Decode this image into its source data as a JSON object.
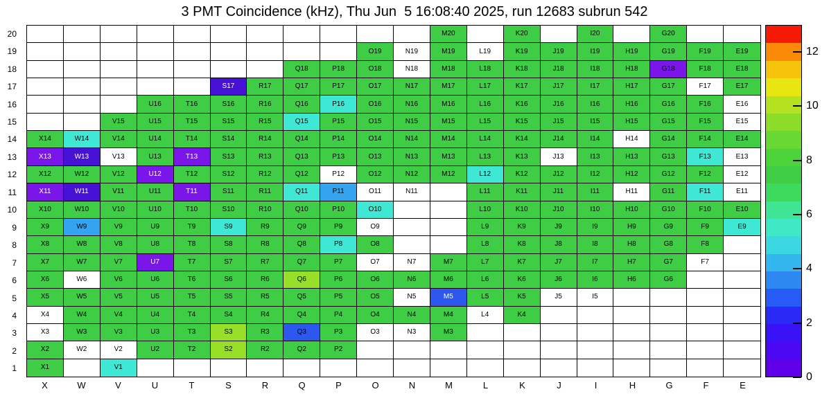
{
  "title": "3 PMT Coincidence (kHz), Thu Jun  5 16:08:40 2025, run 12683 subrun 542",
  "chart_data": {
    "type": "heatmap",
    "title": "3 PMT Coincidence (kHz), Thu Jun  5 16:08:40 2025, run 12683 subrun 542",
    "x_categories": [
      "X",
      "W",
      "V",
      "U",
      "T",
      "S",
      "R",
      "Q",
      "P",
      "O",
      "N",
      "M",
      "L",
      "K",
      "J",
      "I",
      "H",
      "G",
      "F",
      "E"
    ],
    "y_categories": [
      20,
      19,
      18,
      17,
      16,
      15,
      14,
      13,
      12,
      11,
      10,
      9,
      8,
      7,
      6,
      5,
      4,
      3,
      2,
      1
    ],
    "grid": true,
    "legend_position": "right",
    "palette": {
      "g": "#3ecd44",
      "yg": "#97df28",
      "c": "#3fe8d4",
      "sb": "#34a4f0",
      "b": "#2c58ee",
      "v": "#7a16ea",
      "dv": "#4712d6",
      "w": "#ffffff"
    },
    "color_value_estimate_khz": {
      "g": 7,
      "yg": 9.5,
      "c": 4.7,
      "sb": 3.3,
      "b": 2.3,
      "v": 0.9,
      "dv": 0.5,
      "w": 0
    },
    "cells": [
      [
        null,
        null,
        null,
        null,
        null,
        null,
        null,
        null,
        null,
        null,
        null,
        [
          "M20",
          "g"
        ],
        null,
        [
          "K20",
          "g"
        ],
        null,
        [
          "I20",
          "g"
        ],
        null,
        [
          "G20",
          "g"
        ],
        null,
        null
      ],
      [
        null,
        null,
        null,
        null,
        null,
        null,
        null,
        null,
        null,
        [
          "O19",
          "g"
        ],
        [
          "N19",
          "w"
        ],
        [
          "M19",
          "g"
        ],
        [
          "L19",
          "w"
        ],
        [
          "K19",
          "g"
        ],
        [
          "J19",
          "g"
        ],
        [
          "I19",
          "g"
        ],
        [
          "H19",
          "g"
        ],
        [
          "G19",
          "g"
        ],
        [
          "F19",
          "g"
        ],
        [
          "E19",
          "g"
        ]
      ],
      [
        null,
        null,
        null,
        null,
        null,
        null,
        null,
        [
          "Q18",
          "g"
        ],
        [
          "P18",
          "g"
        ],
        [
          "O18",
          "g"
        ],
        [
          "N18",
          "w"
        ],
        [
          "M18",
          "g"
        ],
        [
          "L18",
          "g"
        ],
        [
          "K18",
          "g"
        ],
        [
          "J18",
          "g"
        ],
        [
          "I18",
          "g"
        ],
        [
          "H18",
          "g"
        ],
        [
          "G18",
          "v"
        ],
        [
          "F18",
          "g"
        ],
        [
          "E18",
          "g"
        ]
      ],
      [
        null,
        null,
        null,
        null,
        null,
        [
          "S17",
          "dv",
          "w"
        ],
        [
          "R17",
          "g"
        ],
        [
          "Q17",
          "g"
        ],
        [
          "P17",
          "g"
        ],
        [
          "O17",
          "g"
        ],
        [
          "N17",
          "g"
        ],
        [
          "M17",
          "g"
        ],
        [
          "L17",
          "g"
        ],
        [
          "K17",
          "g"
        ],
        [
          "J17",
          "g"
        ],
        [
          "I17",
          "g"
        ],
        [
          "H17",
          "g"
        ],
        [
          "G17",
          "g"
        ],
        [
          "F17",
          "w"
        ],
        [
          "E17",
          "g"
        ]
      ],
      [
        null,
        null,
        null,
        [
          "U16",
          "g"
        ],
        [
          "T16",
          "g"
        ],
        [
          "S16",
          "g"
        ],
        [
          "R16",
          "g"
        ],
        [
          "Q16",
          "g"
        ],
        [
          "P16",
          "c"
        ],
        [
          "O16",
          "g"
        ],
        [
          "N16",
          "g"
        ],
        [
          "M16",
          "g"
        ],
        [
          "L16",
          "g"
        ],
        [
          "K16",
          "g"
        ],
        [
          "J16",
          "g"
        ],
        [
          "I16",
          "g"
        ],
        [
          "H16",
          "g"
        ],
        [
          "G16",
          "g"
        ],
        [
          "F16",
          "g"
        ],
        [
          "E16",
          "w"
        ]
      ],
      [
        null,
        null,
        [
          "V15",
          "g"
        ],
        [
          "U15",
          "g"
        ],
        [
          "T15",
          "g"
        ],
        [
          "S15",
          "g"
        ],
        [
          "R15",
          "g"
        ],
        [
          "Q15",
          "c"
        ],
        [
          "P15",
          "g"
        ],
        [
          "O15",
          "g"
        ],
        [
          "N15",
          "g"
        ],
        [
          "M15",
          "g"
        ],
        [
          "L15",
          "g"
        ],
        [
          "K15",
          "g"
        ],
        [
          "J15",
          "g"
        ],
        [
          "I15",
          "g"
        ],
        [
          "H15",
          "g"
        ],
        [
          "G15",
          "g"
        ],
        [
          "F15",
          "g"
        ],
        [
          "E15",
          "w"
        ]
      ],
      [
        [
          "X14",
          "g"
        ],
        [
          "W14",
          "c"
        ],
        [
          "V14",
          "g"
        ],
        [
          "U14",
          "g"
        ],
        [
          "T14",
          "g"
        ],
        [
          "S14",
          "g"
        ],
        [
          "R14",
          "g"
        ],
        [
          "Q14",
          "g"
        ],
        [
          "P14",
          "g"
        ],
        [
          "O14",
          "g"
        ],
        [
          "N14",
          "g"
        ],
        [
          "M14",
          "g"
        ],
        [
          "L14",
          "g"
        ],
        [
          "K14",
          "g"
        ],
        [
          "J14",
          "g"
        ],
        [
          "I14",
          "g"
        ],
        [
          "H14",
          "w"
        ],
        [
          "G14",
          "g"
        ],
        [
          "F14",
          "g"
        ],
        [
          "E14",
          "g"
        ]
      ],
      [
        [
          "X13",
          "v",
          "w"
        ],
        [
          "W13",
          "dv",
          "w"
        ],
        [
          "V13",
          "w"
        ],
        [
          "U13",
          "g"
        ],
        [
          "T13",
          "v",
          "w"
        ],
        [
          "S13",
          "g"
        ],
        [
          "R13",
          "g"
        ],
        [
          "Q13",
          "g"
        ],
        [
          "P13",
          "g"
        ],
        [
          "O13",
          "g"
        ],
        [
          "N13",
          "g"
        ],
        [
          "M13",
          "g"
        ],
        [
          "L13",
          "g"
        ],
        [
          "K13",
          "g"
        ],
        [
          "J13",
          "w"
        ],
        [
          "I13",
          "g"
        ],
        [
          "H13",
          "g"
        ],
        [
          "G13",
          "g"
        ],
        [
          "F13",
          "c"
        ],
        [
          "E13",
          "w"
        ]
      ],
      [
        [
          "X12",
          "g"
        ],
        [
          "W12",
          "g"
        ],
        [
          "V12",
          "g"
        ],
        [
          "U12",
          "v",
          "w"
        ],
        [
          "T12",
          "g"
        ],
        [
          "S12",
          "g"
        ],
        [
          "R12",
          "g"
        ],
        [
          "Q12",
          "g"
        ],
        [
          "P12",
          "w"
        ],
        [
          "O12",
          "g"
        ],
        [
          "N12",
          "g"
        ],
        [
          "M12",
          "g"
        ],
        [
          "L12",
          "c"
        ],
        [
          "K12",
          "g"
        ],
        [
          "J12",
          "g"
        ],
        [
          "I12",
          "g"
        ],
        [
          "H12",
          "g"
        ],
        [
          "G12",
          "g"
        ],
        [
          "F12",
          "g"
        ],
        [
          "E12",
          "w"
        ]
      ],
      [
        [
          "X11",
          "v",
          "w"
        ],
        [
          "W11",
          "dv",
          "w"
        ],
        [
          "V11",
          "g"
        ],
        [
          "U11",
          "g"
        ],
        [
          "T11",
          "v",
          "w"
        ],
        [
          "S11",
          "g"
        ],
        [
          "R11",
          "g"
        ],
        [
          "Q11",
          "c"
        ],
        [
          "P11",
          "sb"
        ],
        [
          "O11",
          "w"
        ],
        [
          "N11",
          "w"
        ],
        null,
        [
          "L11",
          "g"
        ],
        [
          "K11",
          "g"
        ],
        [
          "J11",
          "g"
        ],
        [
          "I11",
          "g"
        ],
        [
          "H11",
          "w"
        ],
        [
          "G11",
          "g"
        ],
        [
          "F11",
          "c"
        ],
        [
          "E11",
          "w"
        ]
      ],
      [
        [
          "X10",
          "g"
        ],
        [
          "W10",
          "g"
        ],
        [
          "V10",
          "g"
        ],
        [
          "U10",
          "g"
        ],
        [
          "T10",
          "g"
        ],
        [
          "S10",
          "g"
        ],
        [
          "R10",
          "g"
        ],
        [
          "Q10",
          "g"
        ],
        [
          "P10",
          "g"
        ],
        [
          "O10",
          "c"
        ],
        null,
        null,
        [
          "L10",
          "g"
        ],
        [
          "K10",
          "g"
        ],
        [
          "J10",
          "g"
        ],
        [
          "I10",
          "g"
        ],
        [
          "H10",
          "g"
        ],
        [
          "G10",
          "g"
        ],
        [
          "F10",
          "g"
        ],
        [
          "E10",
          "g"
        ]
      ],
      [
        [
          "X9",
          "g"
        ],
        [
          "W9",
          "sb"
        ],
        [
          "V9",
          "g"
        ],
        [
          "U9",
          "g"
        ],
        [
          "T9",
          "g"
        ],
        [
          "S9",
          "c"
        ],
        [
          "R9",
          "g"
        ],
        [
          "Q9",
          "g"
        ],
        [
          "P9",
          "g"
        ],
        [
          "O9",
          "w"
        ],
        null,
        null,
        [
          "L9",
          "g"
        ],
        [
          "K9",
          "g"
        ],
        [
          "J9",
          "g"
        ],
        [
          "I9",
          "g"
        ],
        [
          "H9",
          "g"
        ],
        [
          "G9",
          "g"
        ],
        [
          "F9",
          "g"
        ],
        [
          "E9",
          "c"
        ]
      ],
      [
        [
          "X8",
          "g"
        ],
        [
          "W8",
          "g"
        ],
        [
          "V8",
          "g"
        ],
        [
          "U8",
          "g"
        ],
        [
          "T8",
          "g"
        ],
        [
          "S8",
          "g"
        ],
        [
          "R8",
          "g"
        ],
        [
          "Q8",
          "g"
        ],
        [
          "P8",
          "c"
        ],
        [
          "O8",
          "g"
        ],
        null,
        null,
        [
          "L8",
          "g"
        ],
        [
          "K8",
          "g"
        ],
        [
          "J8",
          "g"
        ],
        [
          "I8",
          "g"
        ],
        [
          "H8",
          "g"
        ],
        [
          "G8",
          "g"
        ],
        [
          "F8",
          "g"
        ],
        null
      ],
      [
        [
          "X7",
          "g"
        ],
        [
          "W7",
          "g"
        ],
        [
          "V7",
          "g"
        ],
        [
          "U7",
          "v",
          "w"
        ],
        [
          "T7",
          "g"
        ],
        [
          "S7",
          "g"
        ],
        [
          "R7",
          "g"
        ],
        [
          "Q7",
          "g"
        ],
        [
          "P7",
          "g"
        ],
        [
          "O7",
          "w"
        ],
        [
          "N7",
          "w"
        ],
        [
          "M7",
          "g"
        ],
        [
          "L7",
          "g"
        ],
        [
          "K7",
          "g"
        ],
        [
          "J7",
          "g"
        ],
        [
          "I7",
          "g"
        ],
        [
          "H7",
          "g"
        ],
        [
          "G7",
          "g"
        ],
        [
          "F7",
          "w"
        ],
        null
      ],
      [
        [
          "X6",
          "g"
        ],
        [
          "W6",
          "w"
        ],
        [
          "V6",
          "g"
        ],
        [
          "U6",
          "g"
        ],
        [
          "T6",
          "g"
        ],
        [
          "S6",
          "g"
        ],
        [
          "R6",
          "g"
        ],
        [
          "Q6",
          "yg"
        ],
        [
          "P6",
          "g"
        ],
        [
          "O6",
          "g"
        ],
        [
          "N6",
          "g"
        ],
        [
          "M6",
          "g"
        ],
        [
          "L6",
          "g"
        ],
        [
          "K6",
          "g"
        ],
        [
          "J6",
          "g"
        ],
        [
          "I6",
          "g"
        ],
        [
          "H6",
          "g"
        ],
        [
          "G6",
          "g"
        ],
        null,
        null
      ],
      [
        [
          "X5",
          "g"
        ],
        [
          "W5",
          "g"
        ],
        [
          "V5",
          "g"
        ],
        [
          "U5",
          "g"
        ],
        [
          "T5",
          "g"
        ],
        [
          "S5",
          "g"
        ],
        [
          "R5",
          "g"
        ],
        [
          "Q5",
          "g"
        ],
        [
          "P5",
          "g"
        ],
        [
          "O5",
          "g"
        ],
        [
          "N5",
          "w"
        ],
        [
          "M5",
          "b",
          "w"
        ],
        [
          "L5",
          "g"
        ],
        [
          "K5",
          "g"
        ],
        [
          "J5",
          "w"
        ],
        [
          "I5",
          "w"
        ],
        null,
        null,
        null,
        null
      ],
      [
        [
          "X4",
          "w"
        ],
        [
          "W4",
          "g"
        ],
        [
          "V4",
          "g"
        ],
        [
          "U4",
          "g"
        ],
        [
          "T4",
          "g"
        ],
        [
          "S4",
          "g"
        ],
        [
          "R4",
          "g"
        ],
        [
          "Q4",
          "g"
        ],
        [
          "P4",
          "g"
        ],
        [
          "O4",
          "g"
        ],
        [
          "N4",
          "g"
        ],
        [
          "M4",
          "g"
        ],
        [
          "L4",
          "w"
        ],
        [
          "K4",
          "g"
        ],
        null,
        null,
        null,
        null,
        null,
        null
      ],
      [
        [
          "X3",
          "w"
        ],
        [
          "W3",
          "g"
        ],
        [
          "V3",
          "g"
        ],
        [
          "U3",
          "g"
        ],
        [
          "T3",
          "g"
        ],
        [
          "S3",
          "yg"
        ],
        [
          "R3",
          "g"
        ],
        [
          "Q3",
          "b"
        ],
        [
          "P3",
          "g"
        ],
        [
          "O3",
          "w"
        ],
        [
          "N3",
          "w"
        ],
        [
          "M3",
          "g"
        ],
        null,
        null,
        null,
        null,
        null,
        null,
        null,
        null
      ],
      [
        [
          "X2",
          "g"
        ],
        [
          "W2",
          "w"
        ],
        [
          "V2",
          "w"
        ],
        [
          "U2",
          "g"
        ],
        [
          "T2",
          "g"
        ],
        [
          "S2",
          "yg"
        ],
        [
          "R2",
          "g"
        ],
        [
          "Q2",
          "g"
        ],
        [
          "P2",
          "g"
        ],
        null,
        null,
        null,
        null,
        null,
        null,
        null,
        null,
        null,
        null,
        null
      ],
      [
        [
          "X1",
          "g"
        ],
        null,
        [
          "V1",
          "c"
        ],
        null,
        null,
        null,
        null,
        null,
        null,
        null,
        null,
        null,
        null,
        null,
        null,
        null,
        null,
        null,
        null,
        null
      ]
    ],
    "colorbar": {
      "min": 0,
      "max": 13,
      "ticks": [
        0,
        2,
        4,
        6,
        8,
        10,
        12
      ],
      "band_colors_bottom_to_top": [
        "#6000e8",
        "#4c08f2",
        "#3a12f8",
        "#2a2af8",
        "#285af5",
        "#2e88f2",
        "#33b6ee",
        "#3cd8e2",
        "#3fe9c8",
        "#3fe494",
        "#3eda5e",
        "#3ecd44",
        "#4cd23a",
        "#68d832",
        "#8cdd29",
        "#b4e220",
        "#e8e612",
        "#f5c30c",
        "#f88a07",
        "#f51a04"
      ]
    }
  }
}
